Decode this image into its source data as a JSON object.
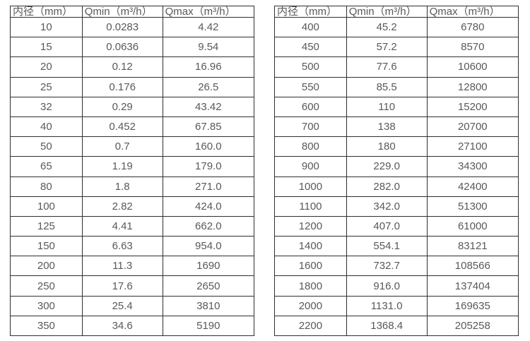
{
  "colors": {
    "border": "#2f2f2f",
    "text": "#58595b",
    "background": "#ffffff"
  },
  "tables": [
    {
      "name": "flow-spec-small-diameters",
      "headers": [
        "内径（mm）",
        "Qmin（m³/h）",
        "Qmax（m³/h）"
      ],
      "rows": [
        [
          "10",
          "0.0283",
          "4.42"
        ],
        [
          "15",
          "0.0636",
          "9.54"
        ],
        [
          "20",
          "0.12",
          "16.96"
        ],
        [
          "25",
          "0.176",
          "26.5"
        ],
        [
          "32",
          "0.29",
          "43.42"
        ],
        [
          "40",
          "0.452",
          "67.85"
        ],
        [
          "50",
          "0.7",
          "160.0"
        ],
        [
          "65",
          "1.19",
          "179.0"
        ],
        [
          "80",
          "1.8",
          "271.0"
        ],
        [
          "100",
          "2.82",
          "424.0"
        ],
        [
          "125",
          "4.41",
          "662.0"
        ],
        [
          "150",
          "6.63",
          "954.0"
        ],
        [
          "200",
          "11.3",
          "1690"
        ],
        [
          "250",
          "17.6",
          "2650"
        ],
        [
          "300",
          "25.4",
          "3810"
        ],
        [
          "350",
          "34.6",
          "5190"
        ]
      ]
    },
    {
      "name": "flow-spec-large-diameters",
      "headers": [
        "内径（mm）",
        "Qmin（m³/h）",
        "Qmax（m³/h）"
      ],
      "rows": [
        [
          "400",
          "45.2",
          "6780"
        ],
        [
          "450",
          "57.2",
          "8570"
        ],
        [
          "500",
          "77.6",
          "10600"
        ],
        [
          "550",
          "85.5",
          "12800"
        ],
        [
          "600",
          "110",
          "15200"
        ],
        [
          "700",
          "138",
          "20700"
        ],
        [
          "800",
          "180",
          "27100"
        ],
        [
          "900",
          "229.0",
          "34300"
        ],
        [
          "1000",
          "282.0",
          "42400"
        ],
        [
          "1100",
          "342.0",
          "51300"
        ],
        [
          "1200",
          "407.0",
          "61000"
        ],
        [
          "1400",
          "554.1",
          "83121"
        ],
        [
          "1600",
          "732.7",
          "108566"
        ],
        [
          "1800",
          "916.0",
          "137404"
        ],
        [
          "2000",
          "1131.0",
          "169635"
        ],
        [
          "2200",
          "1368.4",
          "205258"
        ]
      ]
    }
  ]
}
